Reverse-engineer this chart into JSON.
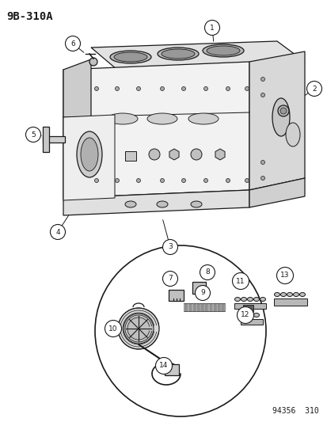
{
  "title": "9B-310A",
  "catalog_number": "94356  310",
  "bg_color": "#ffffff",
  "dark": "#1a1a1a",
  "title_fontsize": 10,
  "catalog_fontsize": 7,
  "lw": 0.9
}
